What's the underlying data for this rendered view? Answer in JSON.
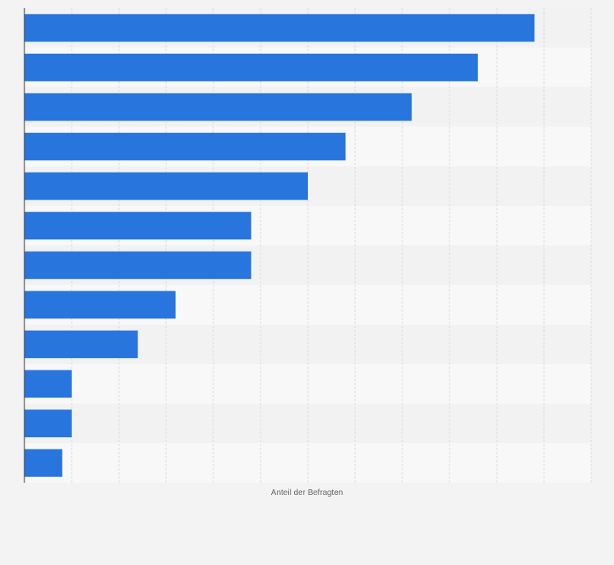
{
  "chart_data": {
    "type": "bar",
    "orientation": "horizontal",
    "categories": [
      "",
      "",
      "",
      "",
      "",
      "",
      "",
      "",
      "",
      "",
      "",
      ""
    ],
    "values": [
      54,
      48,
      41,
      34,
      30,
      24,
      24,
      16,
      12,
      5,
      5,
      4
    ],
    "title": "",
    "xlabel": "Anteil der Befragten",
    "ylabel": "",
    "xlim": [
      0,
      60
    ],
    "grid": "vertical dashed",
    "legend": "none"
  },
  "colors": {
    "bar": "#2876dd",
    "band_dark": "#f2f2f2",
    "band_light": "#f8f8f8",
    "gridline": "#dcdcdc",
    "axis": "#333333",
    "label": "#666666"
  }
}
